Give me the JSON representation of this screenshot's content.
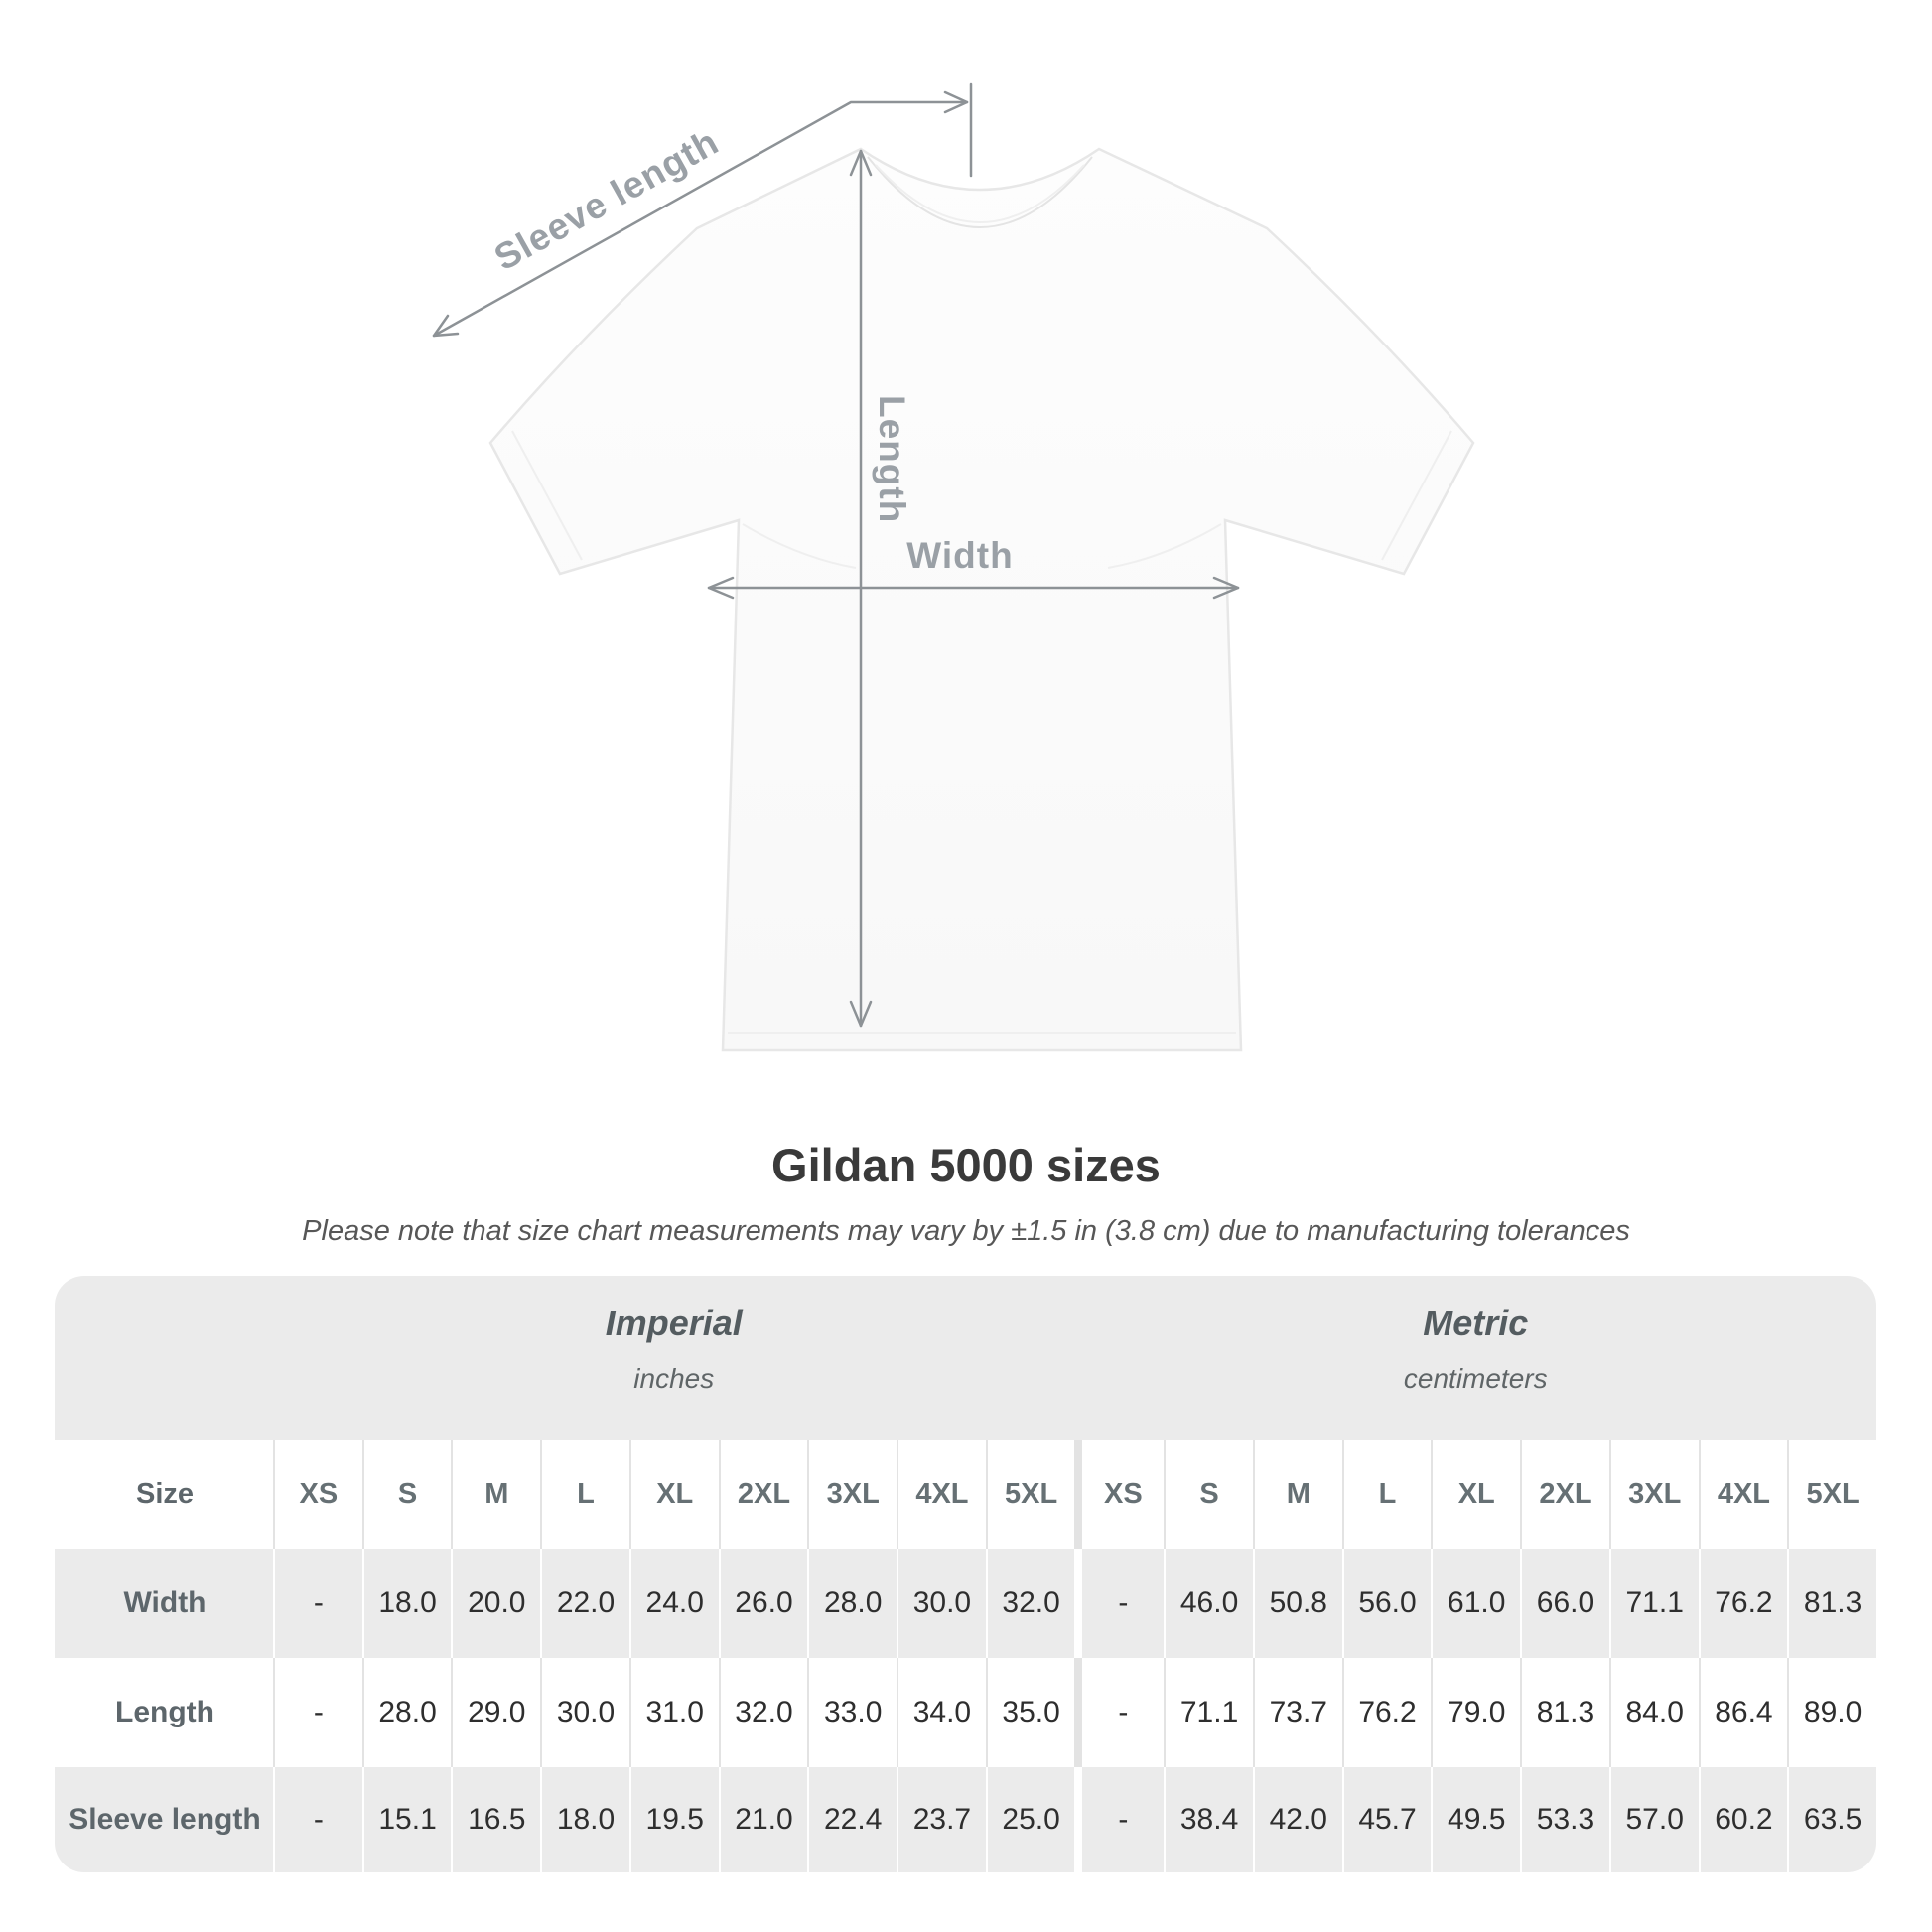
{
  "theme": {
    "line": "#8d9296",
    "label": "#9aa0a6",
    "heading": "#3a3a3a",
    "row_alt": "#ebebeb",
    "text_dark": "#2e2e2e"
  },
  "diagram": {
    "sleeve_length_label": "Sleeve length",
    "length_label": "Length",
    "width_label": "Width"
  },
  "title": "Gildan 5000 sizes",
  "subtitle": "Please note that size chart measurements may vary by ±1.5 in (3.8 cm) due to manufacturing tolerances",
  "chart_data": {
    "type": "table",
    "title": "Gildan 5000 sizes",
    "unit_groups": [
      {
        "name": "Imperial",
        "unit": "inches"
      },
      {
        "name": "Metric",
        "unit": "centimeters"
      }
    ],
    "size_header": "Size",
    "size_columns": [
      "XS",
      "S",
      "M",
      "L",
      "XL",
      "2XL",
      "3XL",
      "4XL",
      "5XL",
      "XS",
      "S",
      "M",
      "L",
      "XL",
      "2XL",
      "3XL",
      "4XL",
      "5XL"
    ],
    "rows": [
      {
        "label": "Width",
        "values": [
          "-",
          "18.0",
          "20.0",
          "22.0",
          "24.0",
          "26.0",
          "28.0",
          "30.0",
          "32.0",
          "-",
          "46.0",
          "50.8",
          "56.0",
          "61.0",
          "66.0",
          "71.1",
          "76.2",
          "81.3"
        ]
      },
      {
        "label": "Length",
        "values": [
          "-",
          "28.0",
          "29.0",
          "30.0",
          "31.0",
          "32.0",
          "33.0",
          "34.0",
          "35.0",
          "-",
          "71.1",
          "73.7",
          "76.2",
          "79.0",
          "81.3",
          "84.0",
          "86.4",
          "89.0"
        ]
      },
      {
        "label": "Sleeve length",
        "values": [
          "-",
          "15.1",
          "16.5",
          "18.0",
          "19.5",
          "21.0",
          "22.4",
          "23.7",
          "25.0",
          "-",
          "38.4",
          "42.0",
          "45.7",
          "49.5",
          "53.3",
          "57.0",
          "60.2",
          "63.5"
        ]
      }
    ]
  }
}
